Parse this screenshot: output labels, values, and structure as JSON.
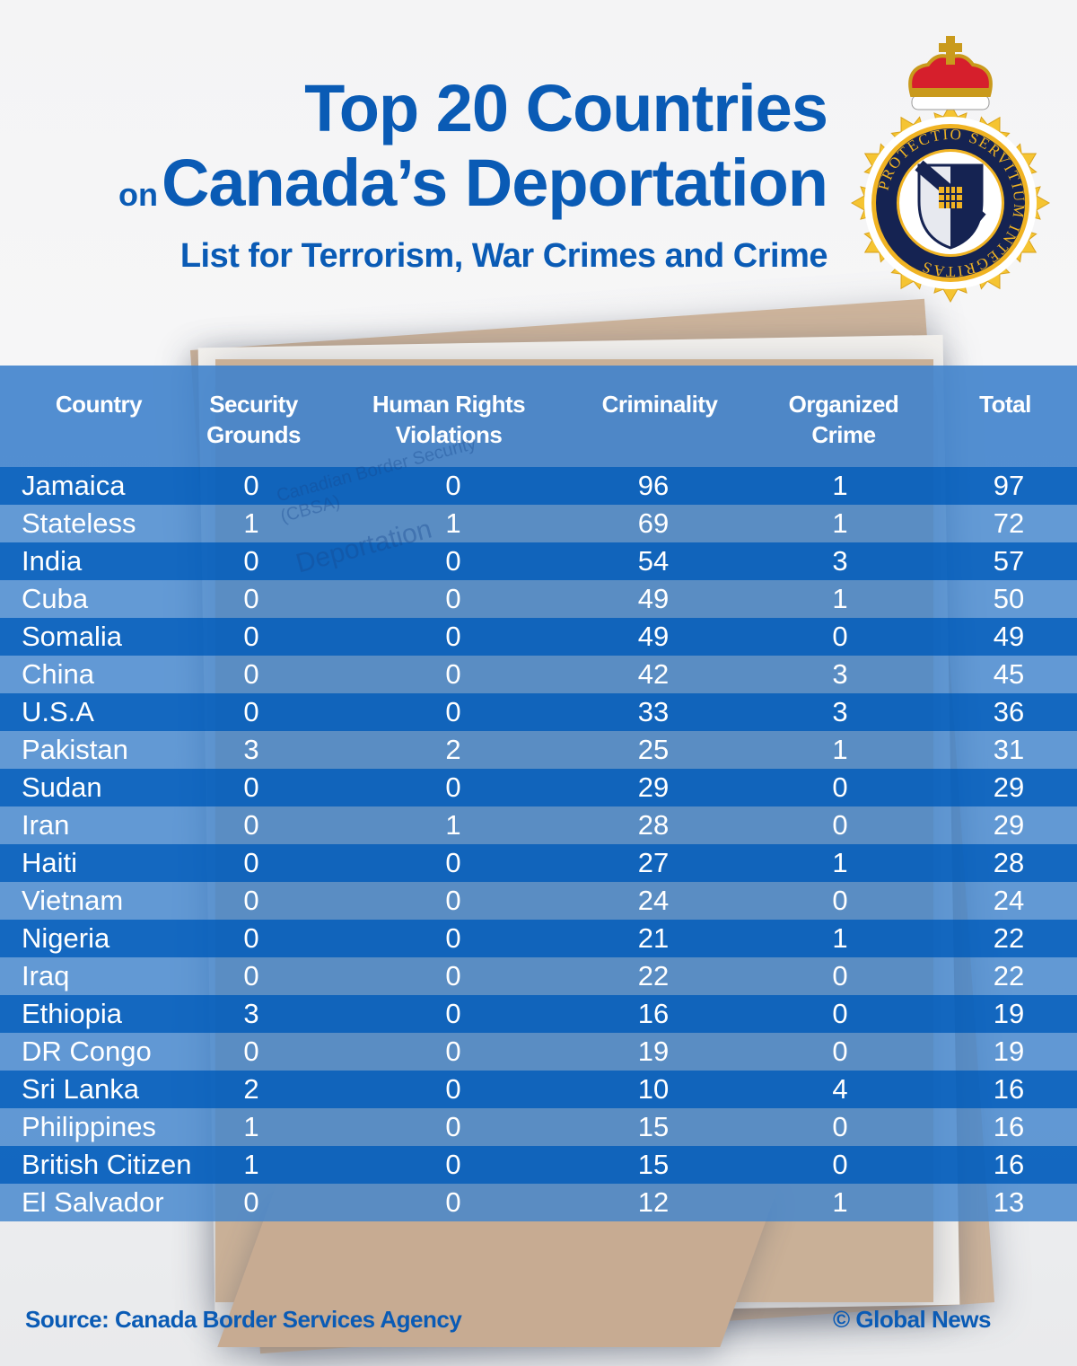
{
  "title": {
    "line1": "Top 20 Countries",
    "line2_prefix": "on",
    "line2": "Canada’s Deportation",
    "line3": "List for Terrorism, War Crimes and Crime"
  },
  "logo": {
    "motto_top": "SERVITIUM",
    "motto_left": "PROTECTIO",
    "motto_right": "INTEGRITAS"
  },
  "background_folder": {
    "label1": "Canadian Border Security",
    "label2": "(CBSA)",
    "label3": "Deportation"
  },
  "table": {
    "headers": [
      {
        "line1": "Country",
        "line2": ""
      },
      {
        "line1": "Security",
        "line2": "Grounds"
      },
      {
        "line1": "Human Rights",
        "line2": "Violations"
      },
      {
        "line1": "Criminality",
        "line2": ""
      },
      {
        "line1": "Organized",
        "line2": "Crime"
      },
      {
        "line1": "Total",
        "line2": ""
      }
    ],
    "rows": [
      [
        "Jamaica",
        "0",
        "0",
        "96",
        "1",
        "97"
      ],
      [
        "Stateless",
        "1",
        "1",
        "69",
        "1",
        "72"
      ],
      [
        "India",
        "0",
        "0",
        "54",
        "3",
        "57"
      ],
      [
        "Cuba",
        "0",
        "0",
        "49",
        "1",
        "50"
      ],
      [
        "Somalia",
        "0",
        "0",
        "49",
        "0",
        "49"
      ],
      [
        "China",
        "0",
        "0",
        "42",
        "3",
        "45"
      ],
      [
        "U.S.A",
        "0",
        "0",
        "33",
        "3",
        "36"
      ],
      [
        "Pakistan",
        "3",
        "2",
        "25",
        "1",
        "31"
      ],
      [
        "Sudan",
        "0",
        "0",
        "29",
        "0",
        "29"
      ],
      [
        "Iran",
        "0",
        "1",
        "28",
        "0",
        "29"
      ],
      [
        "Haiti",
        "0",
        "0",
        "27",
        "1",
        "28"
      ],
      [
        "Vietnam",
        "0",
        "0",
        "24",
        "0",
        "24"
      ],
      [
        "Nigeria",
        "0",
        "0",
        "21",
        "1",
        "22"
      ],
      [
        "Iraq",
        "0",
        "0",
        "22",
        "0",
        "22"
      ],
      [
        "Ethiopia",
        "3",
        "0",
        "16",
        "0",
        "19"
      ],
      [
        "DR Congo",
        "0",
        "0",
        "19",
        "0",
        "19"
      ],
      [
        "Sri Lanka",
        "2",
        "0",
        "10",
        "4",
        "16"
      ],
      [
        "Philippines",
        "1",
        "0",
        "15",
        "0",
        "16"
      ],
      [
        "British Citizen",
        "1",
        "0",
        "15",
        "0",
        "16"
      ],
      [
        "El Salvador",
        "0",
        "0",
        "12",
        "1",
        "13"
      ]
    ]
  },
  "footer": {
    "source": "Source: Canada Border Services Agency",
    "credit": "© Global News"
  },
  "colors": {
    "title_blue": "#0a5bb5",
    "row_dark": "#0760bd",
    "row_light": "#4285cd",
    "header_bg": "#4083cc"
  },
  "chart_data": {
    "type": "table",
    "title": "Top 20 Countries on Canada’s Deportation List for Terrorism, War Crimes and Crime",
    "columns": [
      "Country",
      "Security Grounds",
      "Human Rights Violations",
      "Criminality",
      "Organized Crime",
      "Total"
    ],
    "categories": [
      "Jamaica",
      "Stateless",
      "India",
      "Cuba",
      "Somalia",
      "China",
      "U.S.A",
      "Pakistan",
      "Sudan",
      "Iran",
      "Haiti",
      "Vietnam",
      "Nigeria",
      "Iraq",
      "Ethiopia",
      "DR Congo",
      "Sri Lanka",
      "Philippines",
      "British Citizen",
      "El Salvador"
    ],
    "series": [
      {
        "name": "Security Grounds",
        "values": [
          0,
          1,
          0,
          0,
          0,
          0,
          0,
          3,
          0,
          0,
          0,
          0,
          0,
          0,
          3,
          0,
          2,
          1,
          1,
          0
        ]
      },
      {
        "name": "Human Rights Violations",
        "values": [
          0,
          1,
          0,
          0,
          0,
          0,
          0,
          2,
          0,
          1,
          0,
          0,
          0,
          0,
          0,
          0,
          0,
          0,
          0,
          0
        ]
      },
      {
        "name": "Criminality",
        "values": [
          96,
          69,
          54,
          49,
          49,
          42,
          33,
          25,
          29,
          28,
          27,
          24,
          21,
          22,
          16,
          19,
          10,
          15,
          15,
          12
        ]
      },
      {
        "name": "Organized Crime",
        "values": [
          1,
          1,
          3,
          1,
          0,
          3,
          3,
          1,
          0,
          0,
          1,
          0,
          1,
          0,
          0,
          0,
          4,
          0,
          0,
          1
        ]
      },
      {
        "name": "Total",
        "values": [
          97,
          72,
          57,
          50,
          49,
          45,
          36,
          31,
          29,
          29,
          28,
          24,
          22,
          22,
          19,
          19,
          16,
          16,
          16,
          13
        ]
      }
    ],
    "source": "Source: Canada Border Services Agency",
    "credit": "© Global News"
  }
}
